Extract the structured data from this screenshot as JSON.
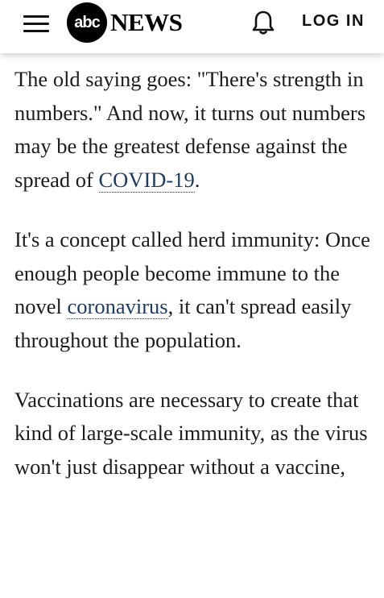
{
  "header": {
    "logo_abc": "abc",
    "logo_news": "NEWS",
    "login_label": "LOG IN"
  },
  "article": {
    "p1_text": "The old saying goes: \"There's strength in numbers.\" And now, it turns out numbers may be the greatest defense against the spread of ",
    "p1_link": "COVID-19",
    "p1_end": ".",
    "p2_text": "It's a concept called herd immunity: Once enough people become immune to the novel ",
    "p2_link": "coronavirus",
    "p2_end": ", it can't spread easily throughout the population.",
    "p3_text": "Vaccinations are necessary to create that kind of large-scale immunity, as the virus won't just disappear without a vaccine,"
  },
  "colors": {
    "link": "#1f3a5f",
    "body_text": "#1c1c1c",
    "header_bg": "#ffffff"
  },
  "icons": {
    "menu": "hamburger-menu-icon",
    "notifications": "bell-icon"
  }
}
